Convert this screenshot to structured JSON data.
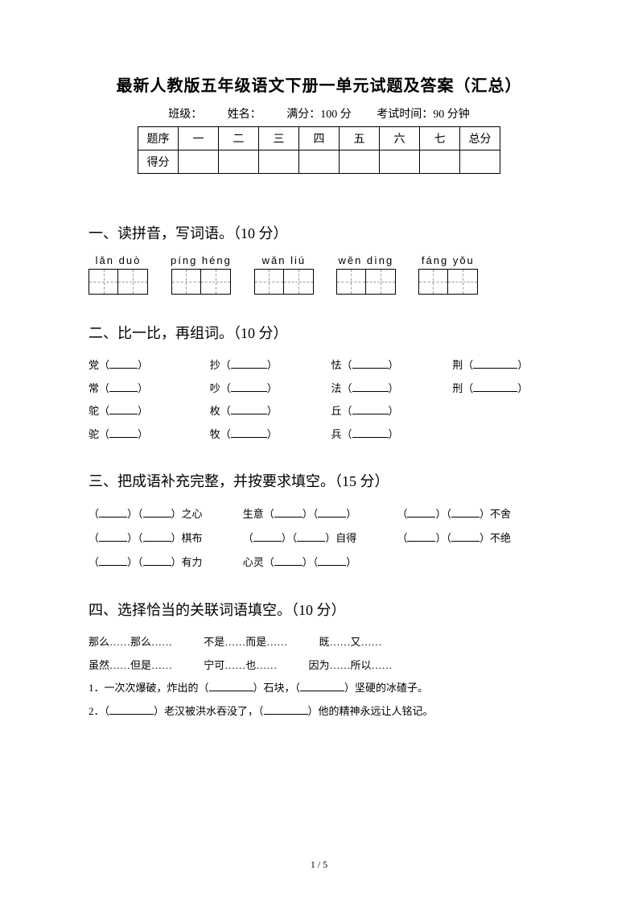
{
  "title": "最新人教版五年级语文下册一单元试题及答案（汇总）",
  "info": {
    "class_label": "班级：",
    "name_label": "姓名：",
    "full_mark": "满分：100 分",
    "time": "考试时间：90 分钟"
  },
  "score_table": {
    "header": [
      "题序",
      "一",
      "二",
      "三",
      "四",
      "五",
      "六",
      "七",
      "总分"
    ],
    "row_label": "得分"
  },
  "s1": {
    "title": "一、读拼音，写词语。（10 分）",
    "items": [
      "lǎn  duò",
      "píng  héng",
      "wǎn  liú",
      "wěn  dìng",
      "fáng  yǒu"
    ]
  },
  "s2": {
    "title": "二、比一比，再组词。（10 分）",
    "pairs": [
      [
        "党（",
        "抄（",
        "怯（",
        "荆（"
      ],
      [
        "常（",
        "吵（",
        "法（",
        "刑（"
      ],
      [
        "鸵（",
        "枚（",
        "丘（",
        ""
      ],
      [
        "驼（",
        "牧（",
        "兵（",
        ""
      ]
    ]
  },
  "s3": {
    "title": "三、把成语补充完整，并按要求填空。（15 分）",
    "rows": [
      [
        "（",
        "）（",
        "）之心",
        "生意（",
        "）（",
        "）",
        "（",
        "）（",
        "）不舍"
      ],
      [
        "（",
        "）（",
        "）棋布",
        "（",
        "）（",
        "）自得",
        "（",
        "）（",
        "）不绝"
      ],
      [
        "（",
        "）（",
        "）有力",
        "心灵（",
        "）（",
        "）",
        ""
      ]
    ]
  },
  "s4": {
    "title": "四、选择恰当的关联词语填空。（10 分）",
    "options": [
      "那么……那么……",
      "不是……而是……",
      "既……又……",
      "虽然……但是……",
      "宁可……也……",
      "因为……所以……"
    ],
    "q1a": "1．一次次爆破，炸出的（",
    "q1b": "）石块，（",
    "q1c": "）坚硬的冰碴子。",
    "q2a": "2．（",
    "q2b": "）老汉被洪水吞没了，（",
    "q2c": "）他的精神永远让人铭记。"
  },
  "page_num": "1  /  5"
}
